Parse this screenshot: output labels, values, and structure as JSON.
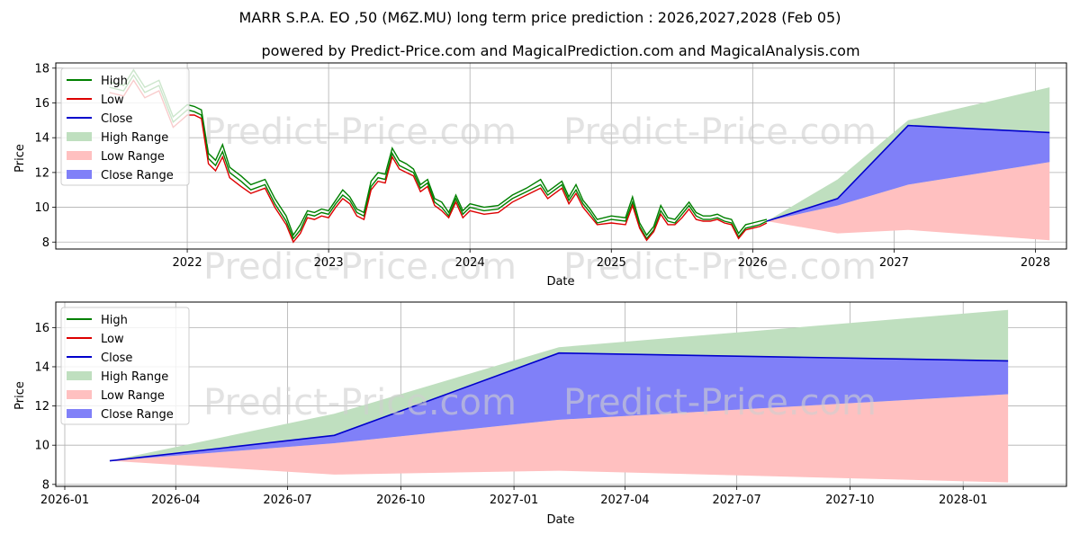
{
  "title": "MARR S.P.A. EO ,50 (M6Z.MU) long term price prediction : 2026,2027,2028 (Feb 05)",
  "subtitle": "powered by Predict-Price.com and MagicalPrediction.com and MagicalAnalysis.com",
  "watermark": "Predict-Price.com",
  "colors": {
    "high": "#008000",
    "low": "#dd0000",
    "close": "#0000cc",
    "high_range": "#bfdfbf",
    "low_range": "#ffc0c0",
    "close_range": "#8080f8"
  },
  "legend": [
    "High",
    "Low",
    "Close",
    "High Range",
    "Low Range",
    "Close Range"
  ],
  "chart_data": [
    {
      "type": "line",
      "title": "",
      "xlabel": "Date",
      "ylabel": "Price",
      "xlim": [
        2021.07,
        2028.22
      ],
      "ylim": [
        7.6,
        18.3
      ],
      "x_ticks": [
        2022,
        2023,
        2024,
        2025,
        2026,
        2027,
        2028
      ],
      "x_tick_labels": [
        "2022",
        "2023",
        "2024",
        "2025",
        "2026",
        "2027",
        "2028"
      ],
      "y_ticks": [
        8,
        10,
        12,
        14,
        16,
        18
      ],
      "y_tick_labels": [
        "8",
        "10",
        "12",
        "14",
        "16",
        "18"
      ],
      "grid": true,
      "legend_position": "top-left",
      "history": {
        "x": [
          2021.45,
          2021.55,
          2021.62,
          2021.7,
          2021.8,
          2021.9,
          2022.0,
          2022.05,
          2022.1,
          2022.15,
          2022.2,
          2022.25,
          2022.3,
          2022.38,
          2022.45,
          2022.55,
          2022.62,
          2022.7,
          2022.75,
          2022.8,
          2022.85,
          2022.9,
          2022.95,
          2023.0,
          2023.05,
          2023.1,
          2023.15,
          2023.2,
          2023.25,
          2023.3,
          2023.35,
          2023.4,
          2023.45,
          2023.5,
          2023.55,
          2023.6,
          2023.65,
          2023.7,
          2023.75,
          2023.8,
          2023.85,
          2023.9,
          2023.95,
          2024.0,
          2024.1,
          2024.2,
          2024.3,
          2024.4,
          2024.5,
          2024.55,
          2024.6,
          2024.65,
          2024.7,
          2024.75,
          2024.8,
          2024.85,
          2024.9,
          2025.0,
          2025.1,
          2025.15,
          2025.2,
          2025.25,
          2025.3,
          2025.35,
          2025.4,
          2025.45,
          2025.5,
          2025.55,
          2025.6,
          2025.65,
          2025.7,
          2025.75,
          2025.8,
          2025.85,
          2025.9,
          2025.95,
          2026.0,
          2026.05,
          2026.1
        ],
        "high": [
          17.2,
          17.0,
          17.9,
          16.9,
          17.3,
          15.2,
          15.9,
          15.8,
          15.6,
          13.1,
          12.7,
          13.6,
          12.3,
          11.8,
          11.3,
          11.6,
          10.5,
          9.5,
          8.4,
          9.0,
          9.8,
          9.7,
          9.9,
          9.8,
          10.4,
          11.0,
          10.6,
          9.9,
          9.7,
          11.5,
          12.0,
          11.9,
          13.4,
          12.7,
          12.5,
          12.2,
          11.3,
          11.6,
          10.5,
          10.3,
          9.7,
          10.7,
          9.8,
          10.2,
          10.0,
          10.1,
          10.7,
          11.1,
          11.6,
          10.9,
          11.2,
          11.5,
          10.6,
          11.3,
          10.4,
          9.9,
          9.3,
          9.5,
          9.4,
          10.6,
          9.1,
          8.4,
          8.9,
          10.1,
          9.4,
          9.3,
          9.8,
          10.3,
          9.7,
          9.5,
          9.5,
          9.6,
          9.4,
          9.3,
          8.5,
          9.0,
          9.1,
          9.2,
          9.3
        ],
        "low": [
          16.6,
          16.4,
          17.3,
          16.3,
          16.7,
          14.6,
          15.3,
          15.3,
          15.1,
          12.5,
          12.1,
          12.9,
          11.7,
          11.2,
          10.8,
          11.1,
          10.0,
          9.0,
          8.0,
          8.5,
          9.4,
          9.3,
          9.5,
          9.4,
          10.0,
          10.5,
          10.2,
          9.5,
          9.3,
          11.0,
          11.5,
          11.4,
          12.9,
          12.2,
          12.0,
          11.8,
          10.9,
          11.2,
          10.1,
          9.8,
          9.4,
          10.3,
          9.4,
          9.8,
          9.6,
          9.7,
          10.3,
          10.7,
          11.1,
          10.5,
          10.8,
          11.1,
          10.2,
          10.8,
          10.0,
          9.5,
          9.0,
          9.1,
          9.0,
          10.1,
          8.8,
          8.1,
          8.6,
          9.6,
          9.0,
          9.0,
          9.4,
          9.9,
          9.3,
          9.2,
          9.2,
          9.3,
          9.1,
          9.0,
          8.2,
          8.7,
          8.8,
          8.9,
          9.1
        ],
        "close": [
          16.9,
          16.7,
          17.6,
          16.6,
          17.0,
          14.9,
          15.6,
          15.5,
          15.3,
          12.8,
          12.4,
          13.2,
          12.0,
          11.5,
          11.0,
          11.3,
          10.2,
          9.2,
          8.2,
          8.7,
          9.6,
          9.5,
          9.7,
          9.6,
          10.2,
          10.7,
          10.4,
          9.7,
          9.5,
          11.2,
          11.7,
          11.6,
          13.1,
          12.4,
          12.2,
          12.0,
          11.1,
          11.4,
          10.3,
          10.0,
          9.5,
          10.5,
          9.6,
          10.0,
          9.8,
          9.9,
          10.5,
          10.9,
          11.3,
          10.7,
          11.0,
          11.3,
          10.4,
          11.0,
          10.2,
          9.7,
          9.1,
          9.3,
          9.2,
          10.3,
          8.9,
          8.2,
          8.7,
          9.8,
          9.2,
          9.1,
          9.6,
          10.1,
          9.5,
          9.3,
          9.3,
          9.4,
          9.2,
          9.1,
          8.3,
          8.8,
          8.9,
          9.0,
          9.2
        ]
      },
      "forecast": {
        "x": [
          2026.1,
          2026.6,
          2027.1,
          2028.1
        ],
        "high_range_upper": [
          9.2,
          11.6,
          15.0,
          16.9
        ],
        "low_range_lower": [
          9.2,
          8.5,
          8.7,
          8.1
        ],
        "close_range_upper": [
          9.2,
          10.5,
          14.7,
          14.3
        ],
        "close_range_lower": [
          9.2,
          10.1,
          11.3,
          12.6
        ],
        "close": [
          9.2,
          10.5,
          14.7,
          14.3
        ]
      }
    },
    {
      "type": "area",
      "title": "",
      "xlabel": "Date",
      "ylabel": "Price",
      "xlim": [
        2025.98,
        2028.23
      ],
      "ylim": [
        7.9,
        17.3
      ],
      "x_ticks": [
        2026.0,
        2026.247,
        2026.496,
        2026.748,
        2027.0,
        2027.247,
        2027.496,
        2027.748,
        2028.0
      ],
      "x_tick_labels": [
        "2026-01",
        "2026-04",
        "2026-07",
        "2026-10",
        "2027-01",
        "2027-04",
        "2027-07",
        "2027-10",
        "2028-01"
      ],
      "y_ticks": [
        8,
        10,
        12,
        14,
        16
      ],
      "y_tick_labels": [
        "8",
        "10",
        "12",
        "14",
        "16"
      ],
      "grid": true,
      "legend_position": "top-left",
      "forecast": {
        "x": [
          2026.1,
          2026.6,
          2027.1,
          2028.1
        ],
        "high_range_upper": [
          9.2,
          11.6,
          15.0,
          16.9
        ],
        "low_range_lower": [
          9.2,
          8.5,
          8.7,
          8.1
        ],
        "close_range_upper": [
          9.2,
          10.5,
          14.7,
          14.3
        ],
        "close_range_lower": [
          9.2,
          10.1,
          11.3,
          12.6
        ],
        "close": [
          9.2,
          10.5,
          14.7,
          14.3
        ]
      }
    }
  ]
}
